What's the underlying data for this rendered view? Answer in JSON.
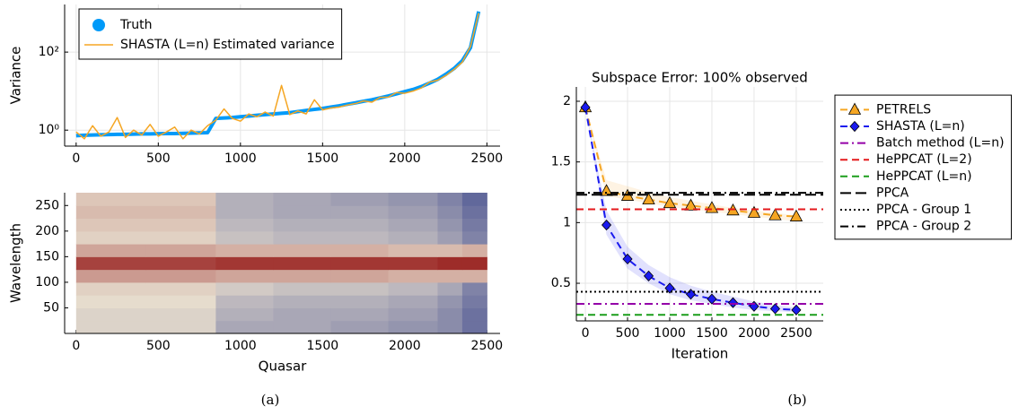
{
  "chart_data": [
    {
      "type": "line",
      "ylabel": "Variance",
      "log_y": true,
      "grid": true,
      "legend": "top-left",
      "xlim": [
        -70,
        2580
      ],
      "xticks": [
        0,
        500,
        1000,
        1500,
        2000,
        2500
      ],
      "ylim": [
        0.39,
        1660
      ],
      "yticks": [
        {
          "value": 1,
          "label": "10⁰"
        },
        {
          "value": 100,
          "label": "10²"
        }
      ],
      "x": [
        0,
        50,
        100,
        150,
        200,
        250,
        300,
        350,
        400,
        450,
        500,
        550,
        600,
        650,
        700,
        750,
        800,
        850,
        900,
        950,
        1000,
        1050,
        1100,
        1150,
        1200,
        1250,
        1300,
        1350,
        1400,
        1450,
        1500,
        1550,
        1600,
        1650,
        1700,
        1750,
        1800,
        1850,
        1900,
        1950,
        2000,
        2050,
        2100,
        2150,
        2200,
        2250,
        2300,
        2350,
        2400,
        2450
      ],
      "series": [
        {
          "name": "Truth",
          "color": "#009af9",
          "marker": "circle",
          "width": 4,
          "values": [
            0.72,
            0.74,
            0.75,
            0.76,
            0.77,
            0.78,
            0.78,
            0.79,
            0.8,
            0.8,
            0.81,
            0.82,
            0.82,
            0.83,
            0.84,
            0.85,
            0.86,
            2.0,
            2.05,
            2.1,
            2.2,
            2.3,
            2.4,
            2.5,
            2.6,
            2.7,
            2.8,
            3.0,
            3.2,
            3.4,
            3.6,
            3.9,
            4.2,
            4.6,
            5.0,
            5.5,
            6.0,
            6.7,
            7.5,
            8.5,
            9.7,
            11,
            13,
            16,
            20,
            27,
            38,
            60,
            130,
            1100
          ]
        },
        {
          "name": "SHASTA (L=n) Estimated variance",
          "color": "#f5a623",
          "width": 1.5,
          "values": [
            0.9,
            0.6,
            1.3,
            0.7,
            0.9,
            2.1,
            0.65,
            1.0,
            0.75,
            1.4,
            0.7,
            0.9,
            1.2,
            0.6,
            1.0,
            0.8,
            1.3,
            1.8,
            3.5,
            2.0,
            1.7,
            2.6,
            2.2,
            2.9,
            2.3,
            14,
            2.5,
            3.1,
            2.6,
            6,
            3.3,
            3.7,
            3.9,
            4.4,
            4.8,
            5.6,
            5.2,
            6.9,
            7.0,
            9.2,
            8.8,
            10,
            12,
            17,
            19,
            25,
            36,
            55,
            140,
            1000
          ]
        }
      ]
    },
    {
      "type": "heatmap",
      "xlabel": "Quasar",
      "ylabel": "Wavelength",
      "xlim": [
        -70,
        2580
      ],
      "xticks": [
        0,
        500,
        1000,
        1500,
        2000,
        2500
      ],
      "ylim": [
        0,
        275
      ],
      "yticks": [
        50,
        100,
        150,
        200,
        250
      ],
      "colormap": [
        "#1a2a80",
        "#e6dccd",
        "#8b0000"
      ],
      "zlim": [
        -1,
        1
      ],
      "x_edges": [
        0,
        425,
        850,
        1200,
        1550,
        1900,
        2200,
        2350,
        2500
      ],
      "y_edges": [
        0,
        25,
        50,
        75,
        100,
        125,
        150,
        175,
        200,
        225,
        250,
        275
      ],
      "z": [
        [
          -0.05,
          -0.05,
          -0.3,
          -0.3,
          -0.35,
          -0.4,
          -0.45,
          -0.6
        ],
        [
          -0.05,
          -0.05,
          -0.25,
          -0.3,
          -0.3,
          -0.35,
          -0.45,
          -0.6
        ],
        [
          0.0,
          0.0,
          -0.2,
          -0.25,
          -0.25,
          -0.3,
          -0.4,
          -0.55
        ],
        [
          0.05,
          0.05,
          -0.1,
          -0.15,
          -0.15,
          -0.2,
          -0.3,
          -0.5
        ],
        [
          0.3,
          0.3,
          0.25,
          0.25,
          0.25,
          0.2,
          0.2,
          0.2
        ],
        [
          0.7,
          0.7,
          0.75,
          0.75,
          0.75,
          0.75,
          0.8,
          0.8
        ],
        [
          0.25,
          0.25,
          0.2,
          0.2,
          0.2,
          0.15,
          0.15,
          0.2
        ],
        [
          0.05,
          0.05,
          -0.15,
          -0.2,
          -0.2,
          -0.25,
          -0.35,
          -0.5
        ],
        [
          0.1,
          0.1,
          -0.2,
          -0.25,
          -0.25,
          -0.3,
          -0.4,
          -0.55
        ],
        [
          0.15,
          0.15,
          -0.25,
          -0.3,
          -0.3,
          -0.35,
          -0.45,
          -0.6
        ],
        [
          0.1,
          0.1,
          -0.25,
          -0.3,
          -0.35,
          -0.4,
          -0.5,
          -0.65
        ]
      ]
    },
    {
      "type": "line",
      "title": "Subspace Error: 100% observed",
      "xlabel": "Iteration",
      "grid": true,
      "legend": "outer-right",
      "xlim": [
        -107,
        2820
      ],
      "xticks": [
        0,
        500,
        1000,
        1500,
        2000,
        2500
      ],
      "ylim": [
        0.19,
        2.118
      ],
      "yticks": [
        0.5,
        1.0,
        1.5,
        2.0
      ],
      "x": [
        0,
        250,
        500,
        750,
        1000,
        1250,
        1500,
        1750,
        2000,
        2250,
        2500
      ],
      "series": [
        {
          "name": "PETRELS",
          "color": "#f5a623",
          "marker": "triangle",
          "dash": "dash",
          "width": 2,
          "values": [
            1.95,
            1.26,
            1.22,
            1.19,
            1.16,
            1.14,
            1.12,
            1.1,
            1.08,
            1.06,
            1.05
          ],
          "band_lower": [
            1.95,
            1.22,
            1.19,
            1.16,
            1.13,
            1.11,
            1.09,
            1.07,
            1.05,
            1.03,
            1.01
          ],
          "band_upper": [
            1.95,
            1.35,
            1.3,
            1.25,
            1.21,
            1.18,
            1.15,
            1.12,
            1.1,
            1.08,
            1.06
          ]
        },
        {
          "name": "SHASTA (L=n)",
          "color": "#1a1aee",
          "marker": "diamond",
          "dash": "dash",
          "width": 2,
          "values": [
            1.95,
            0.98,
            0.7,
            0.56,
            0.46,
            0.41,
            0.37,
            0.34,
            0.31,
            0.29,
            0.28
          ],
          "band_lower": [
            1.95,
            0.9,
            0.62,
            0.5,
            0.41,
            0.36,
            0.33,
            0.3,
            0.28,
            0.27,
            0.26
          ],
          "band_upper": [
            1.95,
            1.1,
            0.8,
            0.65,
            0.55,
            0.48,
            0.43,
            0.39,
            0.35,
            0.32,
            0.3
          ]
        },
        {
          "name": "Batch method (L=n)",
          "color": "#9400a8",
          "dash": "dashdot",
          "width": 2,
          "value": 0.33
        },
        {
          "name": "HePPCAT (L=2)",
          "color": "#e41a1c",
          "dash": "dash",
          "width": 2,
          "value": 1.11
        },
        {
          "name": "HePPCAT (L=n)",
          "color": "#1b9e1b",
          "dash": "dash",
          "width": 2,
          "value": 0.24
        },
        {
          "name": "PPCA",
          "color": "#000000",
          "dash": "longdash",
          "width": 2,
          "value": 1.23
        },
        {
          "name": "PPCA - Group 1",
          "color": "#000000",
          "dash": "dot",
          "width": 2,
          "value": 0.43
        },
        {
          "name": "PPCA - Group 2",
          "color": "#000000",
          "dash": "dashdot",
          "width": 2,
          "value": 1.245
        }
      ]
    }
  ],
  "panel_labels": [
    "(a)",
    "(b)"
  ]
}
